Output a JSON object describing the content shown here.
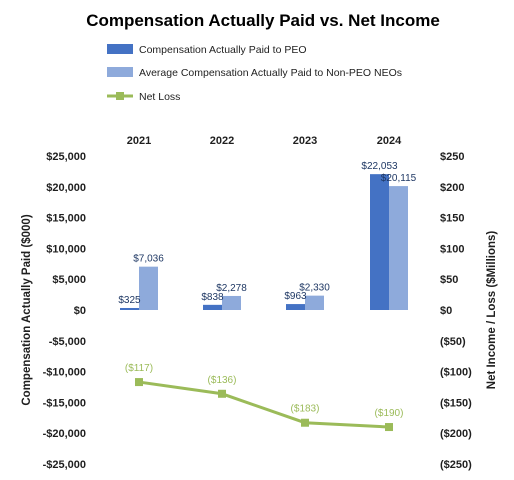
{
  "colors": {
    "peo": "#4472c4",
    "non_peo": "#8eaadb",
    "line": "#9bbb59",
    "bar_label": "#1f3864"
  },
  "chart_data": {
    "type": "bar",
    "title": "Compensation Actually Paid vs. Net Income",
    "categories": [
      "2021",
      "2022",
      "2023",
      "2024"
    ],
    "series": [
      {
        "name": "Compensation Actually Paid to PEO",
        "type": "bar",
        "axis": "left",
        "values": [
          325,
          838,
          963,
          22053
        ],
        "labels": [
          "$325",
          "$838",
          "$963",
          "$22,053"
        ]
      },
      {
        "name": "Average Compensation Actually Paid to Non-PEO NEOs",
        "type": "bar",
        "axis": "left",
        "values": [
          7036,
          2278,
          2330,
          20115
        ],
        "labels": [
          "$7,036",
          "$2,278",
          "$2,330",
          "$20,115"
        ]
      },
      {
        "name": "Net Loss",
        "type": "line",
        "axis": "right",
        "values": [
          -117,
          -136,
          -183,
          -190
        ],
        "labels": [
          "($117)",
          "($136)",
          "($183)",
          "($190)"
        ]
      }
    ],
    "y_left": {
      "label": "Compensation Actually Paid ($000)",
      "range": [
        -25000,
        25000
      ],
      "step": 5000,
      "tick_labels": [
        "$25,000",
        "$20,000",
        "$15,000",
        "$10,000",
        "$5,000",
        "$0",
        "-$5,000",
        "-$10,000",
        "-$15,000",
        "-$20,000",
        "-$25,000"
      ]
    },
    "y_right": {
      "label": "Net Income / Loss ($Millions)",
      "range": [
        -250,
        250
      ],
      "step": 50,
      "tick_labels": [
        "$250",
        "$200",
        "$150",
        "$100",
        "$50",
        "$0",
        "($50)",
        "($100)",
        "($150)",
        "($200)",
        "($250)"
      ]
    },
    "category_axis_position": "top",
    "grid": false,
    "legend_position": "top-left"
  }
}
